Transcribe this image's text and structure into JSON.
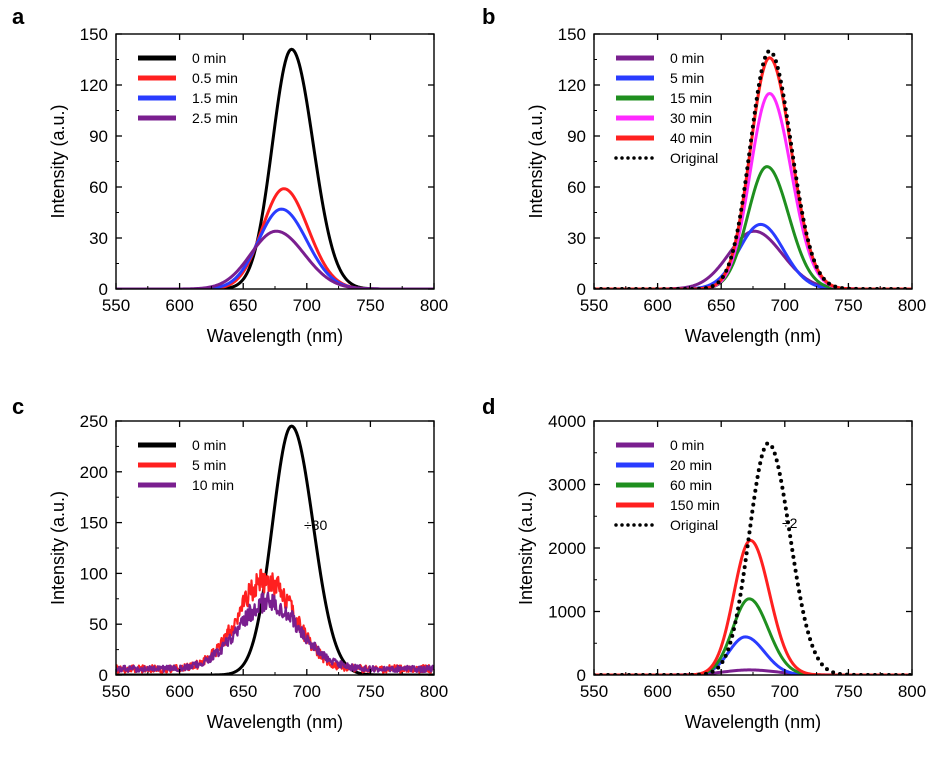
{
  "chart_data": [
    {
      "panel": "a",
      "type": "line",
      "xlabel": "Wavelength (nm)",
      "ylabel": "Intensity (a.u.)",
      "xlim": [
        550,
        800
      ],
      "ylim": [
        0,
        150
      ],
      "xticks": [
        550,
        600,
        650,
        700,
        750,
        800
      ],
      "yticks": [
        0,
        30,
        60,
        90,
        120,
        150
      ],
      "legend_position": "top-left",
      "series": [
        {
          "name": "0 min",
          "color": "#000000",
          "style": "solid",
          "peak_x": 688,
          "peak_y": 141,
          "width_left": 15,
          "width_right": 17,
          "noise": 0
        },
        {
          "name": "0.5 min",
          "color": "#ff2020",
          "style": "solid",
          "peak_x": 682,
          "peak_y": 59,
          "width_left": 17,
          "width_right": 19,
          "noise": 0
        },
        {
          "name": "1.5 min",
          "color": "#2a3cff",
          "style": "solid",
          "peak_x": 680,
          "peak_y": 47,
          "width_left": 18,
          "width_right": 20,
          "noise": 0
        },
        {
          "name": "2.5 min",
          "color": "#7a1f8f",
          "style": "solid",
          "peak_x": 676,
          "peak_y": 34,
          "width_left": 20,
          "width_right": 22,
          "noise": 0
        }
      ]
    },
    {
      "panel": "b",
      "type": "line",
      "xlabel": "Wavelength (nm)",
      "ylabel": "Intensity (a.u.)",
      "xlim": [
        550,
        800
      ],
      "ylim": [
        0,
        150
      ],
      "xticks": [
        550,
        600,
        650,
        700,
        750,
        800
      ],
      "yticks": [
        0,
        30,
        60,
        90,
        120,
        150
      ],
      "legend_position": "top-left",
      "series": [
        {
          "name": "0 min",
          "color": "#7a1f8f",
          "style": "solid",
          "peak_x": 676,
          "peak_y": 34,
          "width_left": 20,
          "width_right": 22,
          "noise": 0
        },
        {
          "name": "5 min",
          "color": "#2a3cff",
          "style": "solid",
          "peak_x": 681,
          "peak_y": 38,
          "width_left": 17,
          "width_right": 18,
          "noise": 0
        },
        {
          "name": "15 min",
          "color": "#1f8f1f",
          "style": "solid",
          "peak_x": 686,
          "peak_y": 72,
          "width_left": 15,
          "width_right": 17,
          "noise": 0
        },
        {
          "name": "30 min",
          "color": "#ff2aff",
          "style": "solid",
          "peak_x": 688,
          "peak_y": 115,
          "width_left": 15,
          "width_right": 17,
          "noise": 0
        },
        {
          "name": "40 min",
          "color": "#ff2020",
          "style": "solid",
          "peak_x": 688,
          "peak_y": 136,
          "width_left": 15,
          "width_right": 17,
          "noise": 0
        },
        {
          "name": "Original",
          "color": "#000000",
          "style": "dotted",
          "peak_x": 688,
          "peak_y": 140,
          "width_left": 15,
          "width_right": 17,
          "noise": 0
        }
      ]
    },
    {
      "panel": "c",
      "type": "line",
      "xlabel": "Wavelength (nm)",
      "ylabel": "Intensity (a.u.)",
      "xlim": [
        550,
        800
      ],
      "ylim": [
        0,
        250
      ],
      "xticks": [
        550,
        600,
        650,
        700,
        750,
        800
      ],
      "yticks": [
        0,
        50,
        100,
        150,
        200,
        250
      ],
      "legend_position": "top-left",
      "annotation": "÷30",
      "series": [
        {
          "name": "0 min",
          "color": "#000000",
          "style": "solid",
          "peak_x": 688,
          "peak_y": 245,
          "width_left": 15,
          "width_right": 17,
          "noise": 0
        },
        {
          "name": "5 min",
          "color": "#ff2020",
          "style": "solid",
          "peak_x": 668,
          "peak_y": 88,
          "width_left": 22,
          "width_right": 22,
          "noise": 9,
          "baseline": 6
        },
        {
          "name": "10 min",
          "color": "#7a1f8f",
          "style": "solid",
          "peak_x": 670,
          "peak_y": 66,
          "width_left": 24,
          "width_right": 24,
          "noise": 7,
          "baseline": 6
        }
      ]
    },
    {
      "panel": "d",
      "type": "line",
      "xlabel": "Wavelength (nm)",
      "ylabel": "Intensity (a.u.)",
      "xlim": [
        550,
        800
      ],
      "ylim": [
        0,
        4000
      ],
      "xticks": [
        550,
        600,
        650,
        700,
        750,
        800
      ],
      "yticks": [
        0,
        1000,
        2000,
        3000,
        4000
      ],
      "legend_position": "top-left",
      "annotation": "÷2",
      "series": [
        {
          "name": "0 min",
          "color": "#7a1f8f",
          "style": "solid",
          "peak_x": 672,
          "peak_y": 80,
          "width_left": 20,
          "width_right": 22,
          "noise": 0
        },
        {
          "name": "20 min",
          "color": "#2a3cff",
          "style": "solid",
          "peak_x": 669,
          "peak_y": 600,
          "width_left": 13,
          "width_right": 15,
          "noise": 0
        },
        {
          "name": "60 min",
          "color": "#1f8f1f",
          "style": "solid",
          "peak_x": 672,
          "peak_y": 1200,
          "width_left": 13,
          "width_right": 15,
          "noise": 0
        },
        {
          "name": "150 min",
          "color": "#ff2020",
          "style": "solid",
          "peak_x": 673,
          "peak_y": 2120,
          "width_left": 13,
          "width_right": 15,
          "noise": 0
        },
        {
          "name": "Original",
          "color": "#000000",
          "style": "dotted",
          "peak_x": 687,
          "peak_y": 3650,
          "width_left": 15,
          "width_right": 17,
          "noise": 0
        }
      ]
    }
  ]
}
